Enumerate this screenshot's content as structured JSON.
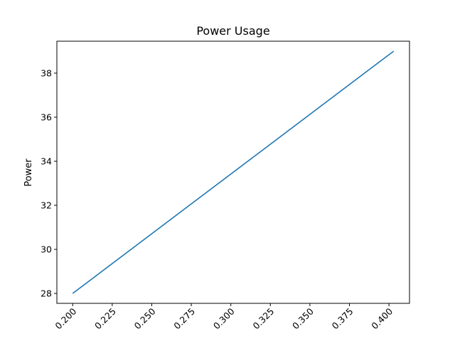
{
  "chart_data": {
    "type": "line",
    "title": "Power Usage",
    "xlabel": "",
    "ylabel": "Power",
    "xlim": [
      0.19,
      0.413
    ],
    "ylim": [
      27.55,
      39.45
    ],
    "xticks": [
      "0.200",
      "0.225",
      "0.250",
      "0.275",
      "0.300",
      "0.325",
      "0.350",
      "0.375",
      "0.400"
    ],
    "xtick_values": [
      0.2,
      0.225,
      0.25,
      0.275,
      0.3,
      0.325,
      0.35,
      0.375,
      0.4
    ],
    "yticks": [
      "28",
      "30",
      "32",
      "34",
      "36",
      "38"
    ],
    "ytick_values": [
      28,
      30,
      32,
      34,
      36,
      38
    ],
    "grid": false,
    "series": [
      {
        "color": "#1f77b4",
        "x": [
          0.2,
          0.403
        ],
        "y": [
          28,
          39
        ]
      }
    ]
  }
}
